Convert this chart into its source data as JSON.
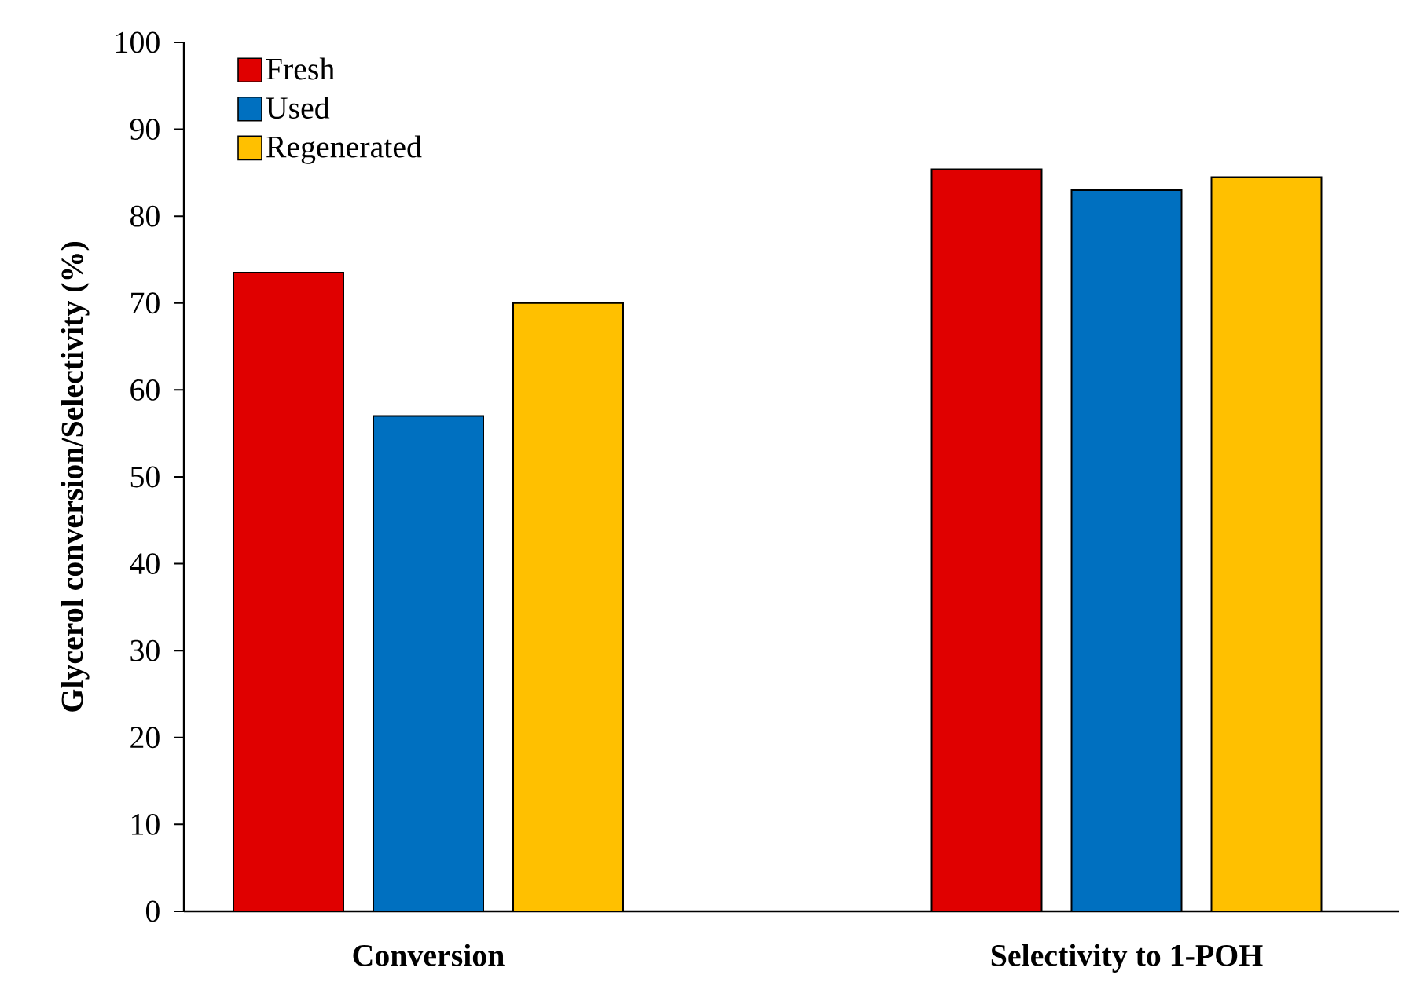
{
  "chart_data": {
    "type": "bar",
    "ylabel": "Glycerol conversion/Selectivity (%)",
    "categories": [
      "Conversion",
      "Selectivity to 1-POH"
    ],
    "series": [
      {
        "name": "Fresh",
        "color": "#e00000",
        "values": [
          73.5,
          85.4
        ]
      },
      {
        "name": "Used",
        "color": "#0070c0",
        "values": [
          57.0,
          83.0
        ]
      },
      {
        "name": "Regenerated",
        "color": "#ffc000",
        "values": [
          70.0,
          84.5
        ]
      }
    ],
    "ylim": [
      0,
      100
    ],
    "yticks": [
      0,
      10,
      20,
      30,
      40,
      50,
      60,
      70,
      80,
      90,
      100
    ],
    "legend": "top left"
  }
}
